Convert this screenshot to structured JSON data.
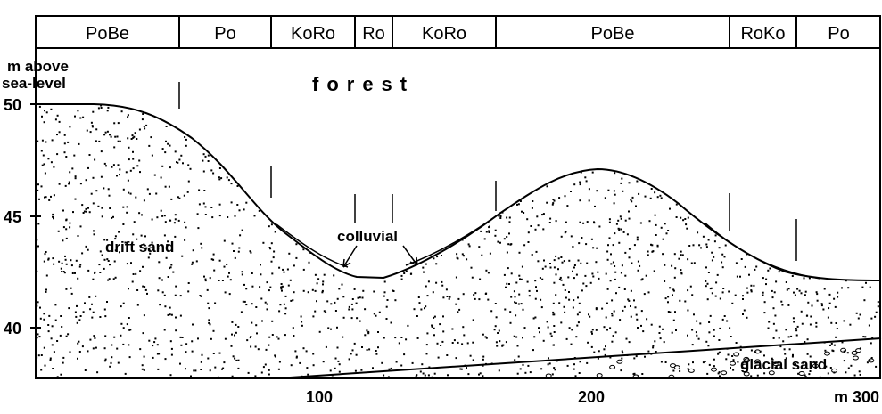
{
  "header": {
    "zones": [
      "PoBe",
      "Po",
      "KoRo",
      "Ro",
      "KoRo",
      "PoBe",
      "RoKo",
      "Po"
    ]
  },
  "y_axis": {
    "label": [
      "m above",
      "sea-level"
    ],
    "ticks": [
      "50",
      "45",
      "40"
    ]
  },
  "x_axis": {
    "ticks": [
      "100",
      "200",
      "m 300"
    ]
  },
  "labels": {
    "vegetation": "forest",
    "drift": "drift sand",
    "colluvial": "colluvial",
    "glacial": "glacial sand"
  }
}
